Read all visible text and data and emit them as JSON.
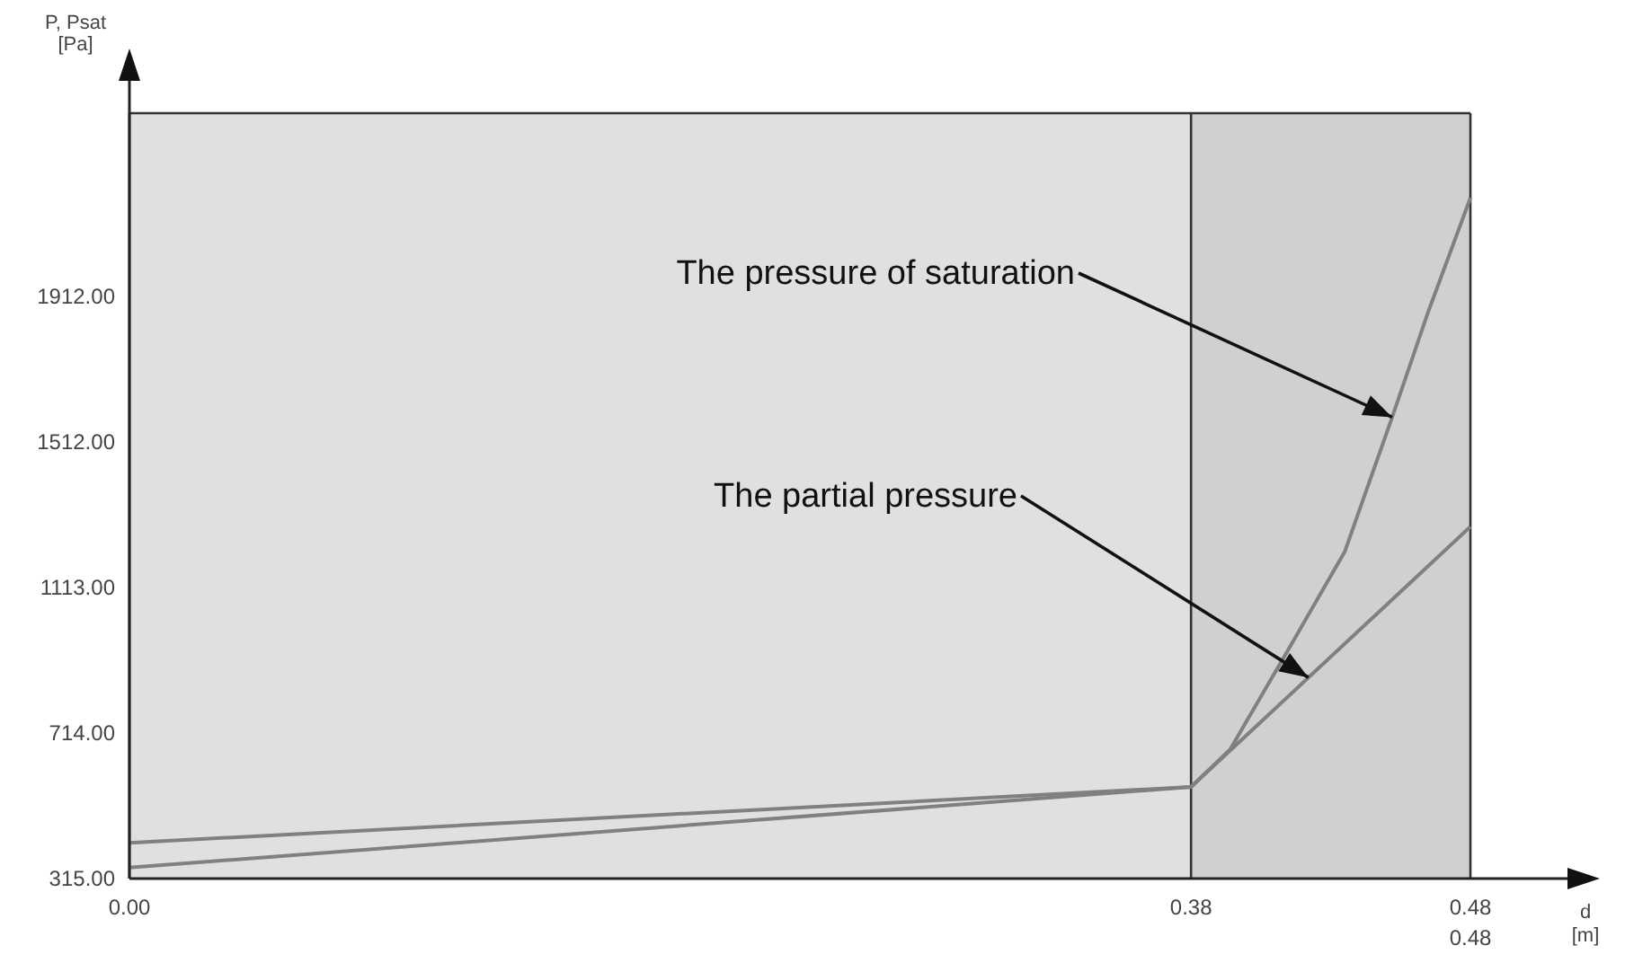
{
  "chart_data": {
    "type": "line",
    "xlabel": "d [m]",
    "ylabel": "P, Psat [Pa]",
    "xlim": [
      0,
      0.48
    ],
    "xticks": [
      {
        "value": 0,
        "label": "0.00"
      },
      0.38,
      0.48
    ],
    "ylim": [
      315,
      2412
    ],
    "yticks": [
      {
        "value": 315,
        "label": "315.00"
      },
      {
        "value": 714,
        "label": "714.00"
      },
      {
        "value": 1113,
        "label": "1113.00"
      },
      {
        "value": 1512,
        "label": "1512.00"
      },
      {
        "value": 1912,
        "label": "1912.00"
      }
    ],
    "series": [
      {
        "color": "#808080",
        "x": [
          0,
          0.38,
          0.394,
          0.4135,
          0.435,
          0.452,
          0.465,
          0.48
        ],
        "values": [
          345,
          566,
          669,
          925,
          1210,
          1579,
          1870,
          2180
        ]
      },
      {
        "color": "#808080",
        "x": [
          0,
          0.38,
          0.48
        ],
        "values": [
          413,
          566,
          1279
        ]
      }
    ],
    "bands": [
      {
        "axis": "x",
        "from": 0.38,
        "to": 0.48,
        "color": "#d0d0d3"
      }
    ],
    "annotations": [
      {
        "text": "The pressure of saturation",
        "x": 0.452,
        "y": 1579
      },
      {
        "text": "The partial pressure",
        "x": 0.422,
        "y": 866
      },
      "0.48"
    ],
    "grid": "x"
  }
}
